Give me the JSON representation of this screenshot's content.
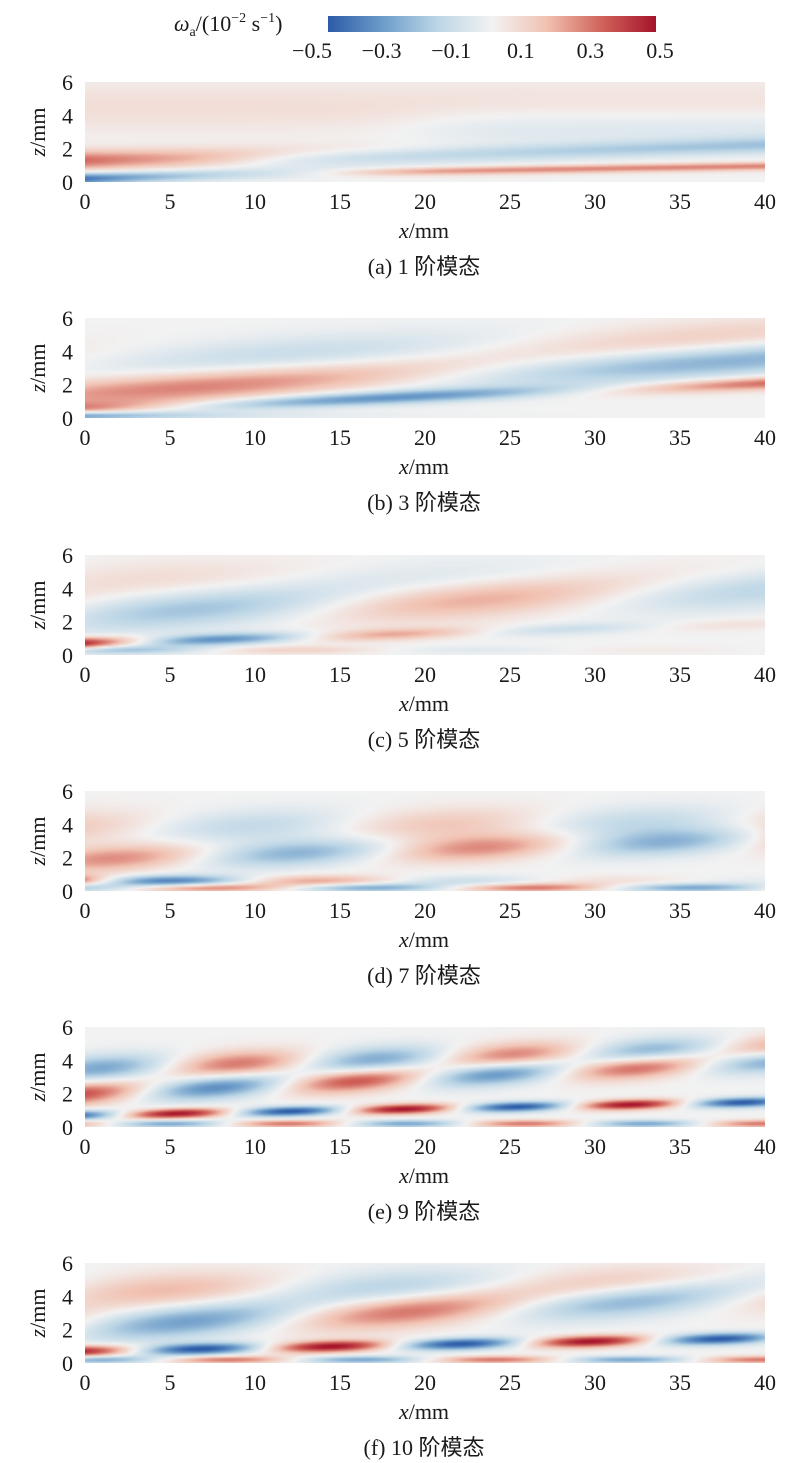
{
  "colorbar": {
    "label_symbol": "ω",
    "label_sub": "a",
    "label_rest": "/(10",
    "label_exp1": "−2",
    "label_unit": " s",
    "label_exp2": "−1",
    "label_close": ")",
    "ticks": [
      "−0.5",
      "−0.3",
      "−0.1",
      "0.1",
      "0.3",
      "0.5"
    ],
    "range": [
      -0.5,
      0.5
    ],
    "colors": [
      "#2c5aa8",
      "#6c9cc9",
      "#bcd6e6",
      "#f2f2f2",
      "#f1c2b2",
      "#d1635a",
      "#a5132b"
    ]
  },
  "chart_data": [
    {
      "type": "heatmap",
      "caption": "(a) 1 阶模态",
      "xlabel_var": "x",
      "xlabel_unit": "/mm",
      "ylabel_var": "z",
      "ylabel_unit": "/mm",
      "xlim": [
        0,
        40
      ],
      "ylim": [
        0,
        6
      ],
      "xticks": [
        "0",
        "5",
        "10",
        "15",
        "20",
        "25",
        "30",
        "35",
        "40"
      ],
      "yticks": [
        "0",
        "2",
        "4",
        "6"
      ],
      "bands": [
        {
          "z": 0.2,
          "k": 0.0,
          "c0": 0.0,
          "amp": -0.45,
          "decay": 8,
          "width": 0.35,
          "slope": 0.03
        },
        {
          "z": 0.35,
          "k": 0.0,
          "c0": 0.0,
          "amp": 0.28,
          "decay": 0,
          "width": 0.25,
          "slope": 0.015,
          "ramp": 16
        },
        {
          "z": 1.3,
          "k": 0.0,
          "c0": 0.0,
          "amp": 0.32,
          "decay": 15,
          "width": 0.6,
          "slope": 0.02
        },
        {
          "z": 1.0,
          "k": 0.0,
          "c0": 0.0,
          "amp": -0.22,
          "decay": 0,
          "width": 0.5,
          "slope": 0.03,
          "ramp": 10
        },
        {
          "z": 3.3,
          "k": 0.0,
          "c0": 0.0,
          "amp": -0.09,
          "decay": 0,
          "width": 1.2,
          "slope": 0.0,
          "ramp": 20
        },
        {
          "z": 4.5,
          "k": 0.0,
          "c0": 0.0,
          "amp": 0.07,
          "decay": 0,
          "width": 1.5,
          "slope": 0.0
        }
      ]
    },
    {
      "type": "heatmap",
      "caption": "(b) 3 阶模态",
      "xlabel_var": "x",
      "xlabel_unit": "/mm",
      "ylabel_var": "z",
      "ylabel_unit": "/mm",
      "xlim": [
        0,
        40
      ],
      "ylim": [
        0,
        6
      ],
      "xticks": [
        "0",
        "5",
        "10",
        "15",
        "20",
        "25",
        "30",
        "35",
        "40"
      ],
      "yticks": [
        "0",
        "2",
        "4",
        "6"
      ],
      "bands": [
        {
          "z": 0.15,
          "k": 0.0,
          "c0": 0.0,
          "amp": -0.4,
          "decay": 6,
          "width": 0.25,
          "slope": 0.0
        },
        {
          "z": 0.5,
          "k": 0.14,
          "c0": 1.2,
          "amp": 0.35,
          "decay": 0,
          "width": 0.4,
          "slope": 0.04
        },
        {
          "z": 1.6,
          "k": 0.12,
          "c0": 0.0,
          "amp": 0.3,
          "decay": 0,
          "width": 1.0,
          "slope": 0.05
        },
        {
          "z": 3.2,
          "k": 0.14,
          "c0": 3.0,
          "amp": 0.14,
          "decay": 0,
          "width": 1.2,
          "slope": 0.04
        }
      ]
    },
    {
      "type": "heatmap",
      "caption": "(c) 5 阶模态",
      "xlabel_var": "x",
      "xlabel_unit": "/mm",
      "ylabel_var": "z",
      "ylabel_unit": "/mm",
      "xlim": [
        0,
        40
      ],
      "ylim": [
        0,
        6
      ],
      "xticks": [
        "0",
        "5",
        "10",
        "15",
        "20",
        "25",
        "30",
        "35",
        "40"
      ],
      "yticks": [
        "0",
        "2",
        "4",
        "6"
      ],
      "bands": [
        {
          "z": 0.7,
          "k": 0.32,
          "c0": 0.8,
          "amp": 0.55,
          "decay": 18,
          "width": 0.35,
          "slope": 0.03
        },
        {
          "z": 0.3,
          "k": 0.3,
          "c0": 2.5,
          "amp": 0.25,
          "decay": 15,
          "width": 0.25,
          "slope": 0.0
        },
        {
          "z": 2.5,
          "k": 0.2,
          "c0": 3.0,
          "amp": 0.22,
          "decay": 0,
          "width": 1.2,
          "slope": 0.04
        },
        {
          "z": 4.5,
          "k": 0.18,
          "c0": 1.0,
          "amp": 0.08,
          "decay": 0,
          "width": 1.2,
          "slope": 0.0
        }
      ]
    },
    {
      "type": "heatmap",
      "caption": "(d) 7 阶模态",
      "xlabel_var": "x",
      "xlabel_unit": "/mm",
      "ylabel_var": "z",
      "ylabel_unit": "/mm",
      "xlim": [
        0,
        40
      ],
      "ylim": [
        0,
        6
      ],
      "xticks": [
        "0",
        "5",
        "10",
        "15",
        "20",
        "25",
        "30",
        "35",
        "40"
      ],
      "yticks": [
        "0",
        "2",
        "4",
        "6"
      ],
      "bands": [
        {
          "z": 0.6,
          "k": 0.36,
          "c0": 1.4,
          "amp": 0.58,
          "decay": 14,
          "width": 0.35,
          "slope": 0.0
        },
        {
          "z": 0.2,
          "k": 0.33,
          "c0": 4.0,
          "amp": 0.3,
          "decay": 0,
          "width": 0.25,
          "slope": 0.0
        },
        {
          "z": 1.9,
          "k": 0.3,
          "c0": 0.3,
          "amp": 0.26,
          "decay": 0,
          "width": 0.8,
          "slope": 0.03
        },
        {
          "z": 3.8,
          "k": 0.28,
          "c0": 2.0,
          "amp": 0.14,
          "decay": 0,
          "width": 1.0,
          "slope": 0.01
        }
      ]
    },
    {
      "type": "heatmap",
      "caption": "(e) 9 阶模态",
      "xlabel_var": "x",
      "xlabel_unit": "/mm",
      "ylabel_var": "z",
      "ylabel_unit": "/mm",
      "xlim": [
        0,
        40
      ],
      "ylim": [
        0,
        6
      ],
      "xticks": [
        "0",
        "5",
        "10",
        "15",
        "20",
        "25",
        "30",
        "35",
        "40"
      ],
      "yticks": [
        "0",
        "2",
        "4",
        "6"
      ],
      "bands": [
        {
          "z": 0.7,
          "k": 0.48,
          "c0": 4.0,
          "amp": 0.5,
          "decay": 0,
          "width": 0.3,
          "slope": 0.02
        },
        {
          "z": 0.2,
          "k": 0.45,
          "c0": 1.0,
          "amp": 0.3,
          "decay": 0,
          "width": 0.22,
          "slope": 0.0
        },
        {
          "z": 2.0,
          "k": 0.4,
          "c0": 1.0,
          "amp": 0.38,
          "decay": 0,
          "width": 0.7,
          "slope": 0.05
        },
        {
          "z": 3.5,
          "k": 0.4,
          "c0": 4.2,
          "amp": 0.3,
          "decay": 0,
          "width": 0.8,
          "slope": 0.03
        }
      ]
    },
    {
      "type": "heatmap",
      "caption": "(f) 10 阶模态",
      "xlabel_var": "x",
      "xlabel_unit": "/mm",
      "ylabel_var": "z",
      "ylabel_unit": "/mm",
      "xlim": [
        0,
        40
      ],
      "ylim": [
        0,
        6
      ],
      "xticks": [
        "0",
        "5",
        "10",
        "15",
        "20",
        "25",
        "30",
        "35",
        "40"
      ],
      "yticks": [
        "0",
        "2",
        "4",
        "6"
      ],
      "bands": [
        {
          "z": 0.7,
          "k": 0.42,
          "c0": 0.6,
          "amp": 0.5,
          "decay": 0,
          "width": 0.35,
          "slope": 0.02
        },
        {
          "z": 0.2,
          "k": 0.4,
          "c0": 3.0,
          "amp": 0.3,
          "decay": 0,
          "width": 0.22,
          "slope": 0.0
        },
        {
          "z": 2.2,
          "k": 0.26,
          "c0": 2.6,
          "amp": 0.32,
          "decay": 0,
          "width": 1.0,
          "slope": 0.05
        },
        {
          "z": 4.3,
          "k": 0.24,
          "c0": 0.6,
          "amp": 0.18,
          "decay": 0,
          "width": 1.1,
          "slope": 0.01
        }
      ]
    }
  ]
}
